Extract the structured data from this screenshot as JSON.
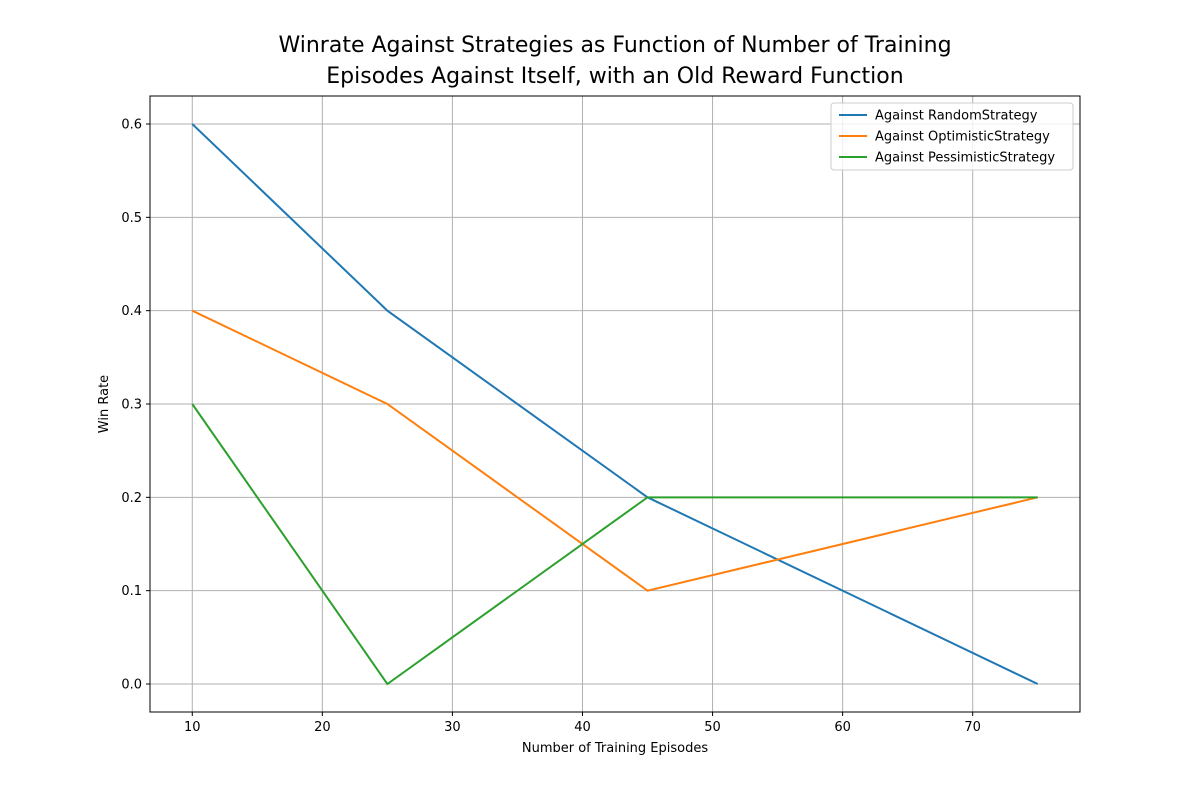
{
  "chart_data": {
    "type": "line",
    "title_lines": [
      "Winrate Against Strategies as Function of Number of Training",
      "Episodes Against Itself, with an Old Reward Function"
    ],
    "xlabel": "Number of Training Episodes",
    "ylabel": "Win Rate",
    "x": [
      10,
      25,
      45,
      75
    ],
    "xlim": [
      6.75,
      78.25
    ],
    "ylim": [
      -0.03,
      0.63
    ],
    "xticks": [
      10,
      20,
      30,
      40,
      50,
      60,
      70
    ],
    "yticks": [
      0.0,
      0.1,
      0.2,
      0.3,
      0.4,
      0.5,
      0.6
    ],
    "xtick_labels": [
      "10",
      "20",
      "30",
      "40",
      "50",
      "60",
      "70"
    ],
    "ytick_labels": [
      "0.0",
      "0.1",
      "0.2",
      "0.3",
      "0.4",
      "0.5",
      "0.6"
    ],
    "grid": true,
    "legend_position": "top-right",
    "series": [
      {
        "name": "Against RandomStrategy",
        "color": "#1f77b4",
        "values": [
          0.6,
          0.4,
          0.2,
          0.0
        ]
      },
      {
        "name": "Against OptimisticStrategy",
        "color": "#ff7f0e",
        "values": [
          0.4,
          0.3,
          0.1,
          0.2
        ]
      },
      {
        "name": "Against PessimisticStrategy",
        "color": "#2ca02c",
        "values": [
          0.3,
          0.0,
          0.2,
          0.2
        ]
      }
    ]
  }
}
